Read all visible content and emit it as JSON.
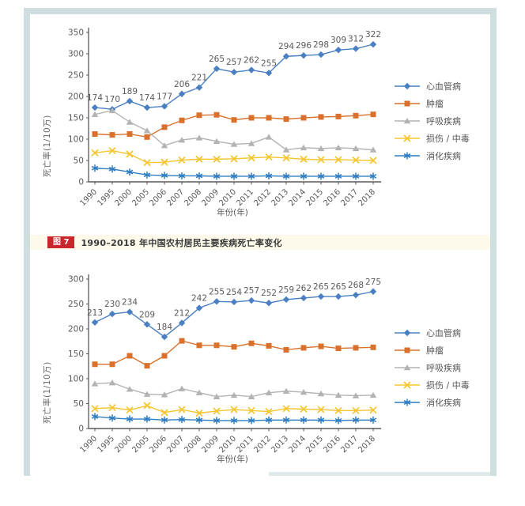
{
  "page": {
    "frame_color": "#cfdede"
  },
  "caption": {
    "badge": "图 7",
    "text": "1990–2018 年中国农村居民主要疾病死亡率变化",
    "badge_color": "#c9252c",
    "bar_color": "#fdfaeb"
  },
  "chart_data": [
    {
      "type": "line",
      "title": "",
      "xlabel": "年份(年)",
      "ylabel": "死亡率(1/10万)",
      "ylim": [
        0,
        350
      ],
      "ytick_step": 50,
      "grid": false,
      "legend_position": "right",
      "categories": [
        "1990",
        "1995",
        "2000",
        "2005",
        "2006",
        "2007",
        "2008",
        "2009",
        "2010",
        "2011",
        "2012",
        "2013",
        "2014",
        "2015",
        "2016",
        "2017",
        "2018"
      ],
      "series": [
        {
          "key": "cardiovascular",
          "name": "心血管病",
          "marker": "diamond",
          "color": "#4a80c2",
          "labeled": true,
          "values": [
            174,
            170,
            189,
            174,
            177,
            206,
            221,
            265,
            257,
            262,
            255,
            294,
            296,
            298,
            309,
            312,
            322
          ]
        },
        {
          "key": "tumor",
          "name": "肿瘤",
          "marker": "square",
          "color": "#d9702c",
          "labeled": false,
          "values": [
            112,
            110,
            112,
            105,
            128,
            144,
            156,
            157,
            145,
            150,
            150,
            147,
            150,
            152,
            153,
            155,
            158
          ]
        },
        {
          "key": "respiratory",
          "name": "呼吸疾病",
          "marker": "triangle",
          "color": "#b3b3b3",
          "labeled": false,
          "values": [
            158,
            167,
            140,
            120,
            85,
            98,
            103,
            95,
            88,
            90,
            105,
            75,
            80,
            78,
            80,
            78,
            75
          ]
        },
        {
          "key": "injury-poisoning",
          "name": "损伤 / 中毒",
          "marker": "xcross",
          "color": "#f5c52e",
          "labeled": false,
          "values": [
            68,
            73,
            65,
            45,
            46,
            51,
            53,
            53,
            54,
            56,
            58,
            56,
            53,
            52,
            52,
            51,
            50
          ]
        },
        {
          "key": "digestive",
          "name": "消化疾病",
          "marker": "star",
          "color": "#2f7dc3",
          "labeled": false,
          "values": [
            32,
            30,
            23,
            16,
            15,
            14,
            14,
            13,
            13,
            13,
            14,
            13,
            13,
            13,
            13,
            13,
            13
          ]
        }
      ]
    },
    {
      "type": "line",
      "title": "",
      "xlabel": "年份(年)",
      "ylabel": "死亡率(1/10万)",
      "ylim": [
        0,
        300
      ],
      "ytick_step": 50,
      "grid": false,
      "legend_position": "right",
      "categories": [
        "1990",
        "1995",
        "2000",
        "2005",
        "2006",
        "2007",
        "2008",
        "2009",
        "2010",
        "2011",
        "2012",
        "2013",
        "2014",
        "2015",
        "2016",
        "2017",
        "2018"
      ],
      "series": [
        {
          "key": "cardiovascular",
          "name": "心血管病",
          "marker": "diamond",
          "color": "#4a80c2",
          "labeled": true,
          "values": [
            213,
            230,
            234,
            209,
            184,
            212,
            242,
            255,
            254,
            257,
            252,
            259,
            262,
            265,
            265,
            268,
            275
          ]
        },
        {
          "key": "tumor",
          "name": "肿瘤",
          "marker": "square",
          "color": "#d9702c",
          "labeled": false,
          "values": [
            129,
            129,
            146,
            126,
            146,
            176,
            167,
            167,
            164,
            171,
            166,
            158,
            162,
            165,
            161,
            162,
            163
          ]
        },
        {
          "key": "respiratory",
          "name": "呼吸疾病",
          "marker": "triangle",
          "color": "#b3b3b3",
          "labeled": false,
          "values": [
            90,
            92,
            79,
            69,
            68,
            80,
            72,
            64,
            67,
            64,
            72,
            75,
            73,
            70,
            67,
            66,
            67
          ]
        },
        {
          "key": "injury-poisoning",
          "name": "损伤 / 中毒",
          "marker": "xcross",
          "color": "#f5c52e",
          "labeled": false,
          "values": [
            40,
            42,
            37,
            46,
            32,
            38,
            31,
            35,
            38,
            36,
            34,
            40,
            39,
            38,
            36,
            36,
            37
          ]
        },
        {
          "key": "digestive",
          "name": "消化疾病",
          "marker": "star",
          "color": "#2f7dc3",
          "labeled": false,
          "values": [
            24,
            21,
            19,
            19,
            17,
            18,
            17,
            16,
            16,
            16,
            17,
            17,
            17,
            17,
            16,
            17,
            17
          ]
        }
      ]
    }
  ]
}
